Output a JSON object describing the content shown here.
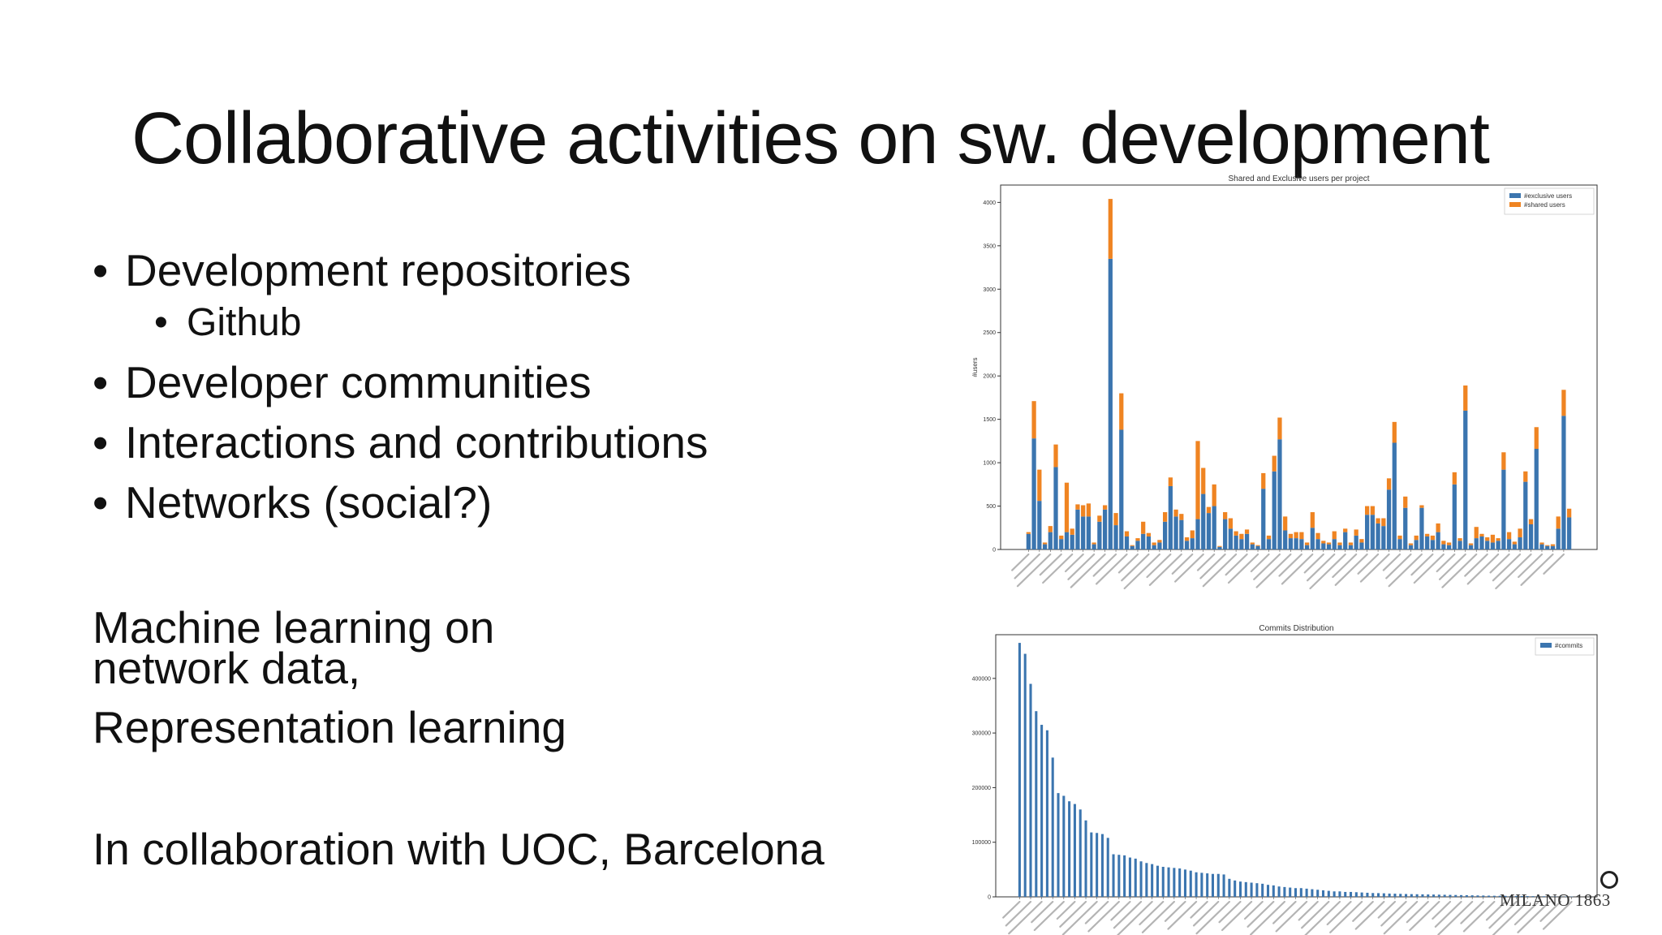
{
  "slide": {
    "title": "Collaborative activities on sw. development",
    "bullet_char": "•",
    "bullets": [
      {
        "text": "Development repositories",
        "sub": [
          "Github"
        ]
      },
      {
        "text": "Developer communities"
      },
      {
        "text": "Interactions and contributions"
      },
      {
        "text": "Networks (social?)"
      }
    ],
    "para1": [
      "Machine learning on",
      "network data,"
    ],
    "para2": "Representation learning",
    "para3": "In collaboration with UOC, Barcelona",
    "logo_text": "MILANO 1863"
  },
  "chart_data": [
    {
      "type": "bar",
      "stacked": true,
      "title": "Shared and Exclusive users per project",
      "xlabel": "",
      "ylabel": "#users",
      "ylim": [
        0,
        4200
      ],
      "yticks": [
        0,
        500,
        1000,
        1500,
        2000,
        2500,
        3000,
        3500,
        4000
      ],
      "legend": "top-right",
      "tick_labels_legible": false,
      "series": [
        {
          "name": "#exclusive users",
          "color": "#3b75af",
          "values": [
            180,
            1280,
            560,
            60,
            200,
            950,
            120,
            200,
            170,
            460,
            380,
            380,
            60,
            320,
            460,
            3350,
            280,
            1380,
            150,
            40,
            100,
            180,
            150,
            50,
            80,
            320,
            730,
            380,
            340,
            100,
            130,
            350,
            640,
            420,
            500,
            30,
            350,
            240,
            160,
            120,
            180,
            60,
            40,
            700,
            120,
            900,
            1270,
            220,
            130,
            130,
            120,
            50,
            250,
            120,
            70,
            60,
            120,
            50,
            200,
            50,
            160,
            80,
            400,
            400,
            300,
            270,
            690,
            1230,
            120,
            480,
            50,
            110,
            480,
            150,
            110,
            200,
            60,
            50,
            750,
            100,
            1600,
            50,
            130,
            150,
            100,
            80,
            100,
            920,
            120,
            60,
            140,
            780,
            290,
            1160,
            60,
            40,
            40,
            240,
            1540,
            370
          ],
          "labels_legible": false
        },
        {
          "name": "#shared users",
          "color": "#ef8422",
          "values": [
            20,
            430,
            360,
            20,
            70,
            260,
            40,
            570,
            70,
            60,
            130,
            150,
            20,
            70,
            50,
            690,
            140,
            420,
            60,
            10,
            30,
            140,
            40,
            30,
            30,
            110,
            100,
            80,
            70,
            40,
            90,
            900,
            300,
            70,
            250,
            10,
            80,
            120,
            50,
            60,
            50,
            20,
            10,
            180,
            40,
            180,
            250,
            160,
            50,
            70,
            80,
            30,
            180,
            70,
            30,
            20,
            90,
            30,
            40,
            30,
            70,
            40,
            100,
            100,
            60,
            90,
            130,
            240,
            40,
            130,
            20,
            50,
            30,
            30,
            50,
            100,
            40,
            30,
            140,
            30,
            290,
            20,
            130,
            30,
            40,
            90,
            30,
            200,
            80,
            30,
            100,
            120,
            60,
            250,
            20,
            10,
            20,
            140,
            300,
            100
          ],
          "labels_legible": false
        }
      ]
    },
    {
      "type": "bar",
      "title": "Commits Distribution",
      "xlabel": "",
      "ylabel": "",
      "ylim": [
        0,
        480000
      ],
      "yticks": [
        0,
        100000,
        200000,
        300000,
        400000
      ],
      "legend": "top-right",
      "tick_labels_legible": false,
      "series": [
        {
          "name": "#commits",
          "color": "#3b75af",
          "values": [
            465000,
            445000,
            390000,
            340000,
            315000,
            305000,
            255000,
            190000,
            185000,
            175000,
            170000,
            160000,
            140000,
            118000,
            117000,
            115000,
            108000,
            78000,
            77000,
            76000,
            72000,
            70000,
            65000,
            62000,
            60000,
            57000,
            55000,
            54000,
            53000,
            52000,
            50000,
            48000,
            45000,
            44000,
            43000,
            42000,
            42000,
            41000,
            33000,
            30000,
            28000,
            27000,
            26000,
            25000,
            24000,
            22000,
            21000,
            19000,
            18000,
            17000,
            16000,
            16000,
            15000,
            14000,
            13000,
            12000,
            11000,
            10000,
            10000,
            9000,
            9000,
            8500,
            8000,
            7500,
            7000,
            6800,
            6500,
            6000,
            5800,
            5500,
            5200,
            5000,
            4800,
            4600,
            4400,
            4200,
            4000,
            3800,
            3600,
            3400,
            3200,
            3000,
            2800,
            2600,
            2400,
            2200,
            2000,
            1900,
            1800,
            1700,
            1600,
            1500,
            1400,
            1300,
            1200,
            1100,
            1000,
            900,
            800,
            700,
            600
          ],
          "labels_legible": false
        }
      ]
    }
  ]
}
